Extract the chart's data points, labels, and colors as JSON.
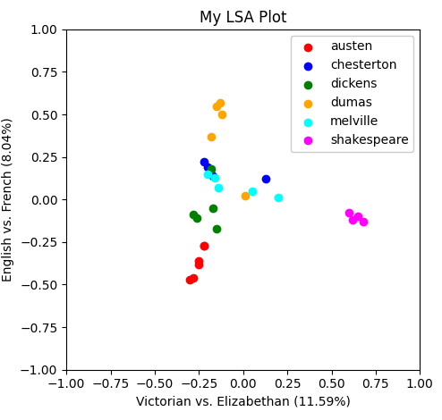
{
  "title": "My LSA Plot",
  "xlabel": "Victorian vs. Elizabethan (11.59%)",
  "ylabel": "English vs. French (8.04%)",
  "xlim": [
    -1.0,
    1.0
  ],
  "ylim": [
    -1.0,
    1.0
  ],
  "series": {
    "austen": {
      "color": "red",
      "x": [
        -0.3,
        -0.28,
        -0.25,
        -0.25,
        -0.22,
        -0.22
      ],
      "y": [
        -0.47,
        -0.46,
        -0.38,
        -0.36,
        -0.27,
        -0.27
      ]
    },
    "chesterton": {
      "color": "blue",
      "x": [
        -0.22,
        -0.2,
        -0.18,
        -0.17,
        0.13
      ],
      "y": [
        0.22,
        0.19,
        0.15,
        0.14,
        0.12
      ]
    },
    "dickens": {
      "color": "green",
      "x": [
        -0.28,
        -0.26,
        -0.18,
        -0.17,
        -0.15
      ],
      "y": [
        -0.09,
        -0.11,
        0.18,
        -0.05,
        -0.17
      ]
    },
    "dumas": {
      "color": "orange",
      "x": [
        -0.18,
        -0.15,
        -0.13,
        -0.12,
        0.01
      ],
      "y": [
        0.37,
        0.55,
        0.57,
        0.5,
        0.02
      ]
    },
    "melville": {
      "color": "cyan",
      "x": [
        -0.2,
        -0.16,
        -0.14,
        0.05,
        0.2
      ],
      "y": [
        0.15,
        0.13,
        0.07,
        0.05,
        0.01
      ]
    },
    "shakespeare": {
      "color": "magenta",
      "x": [
        0.6,
        0.62,
        0.65,
        0.68
      ],
      "y": [
        -0.08,
        -0.12,
        -0.1,
        -0.13
      ]
    }
  },
  "marker_size": 36,
  "legend_fontsize": 10,
  "title_fontsize": 12,
  "label_fontsize": 10
}
